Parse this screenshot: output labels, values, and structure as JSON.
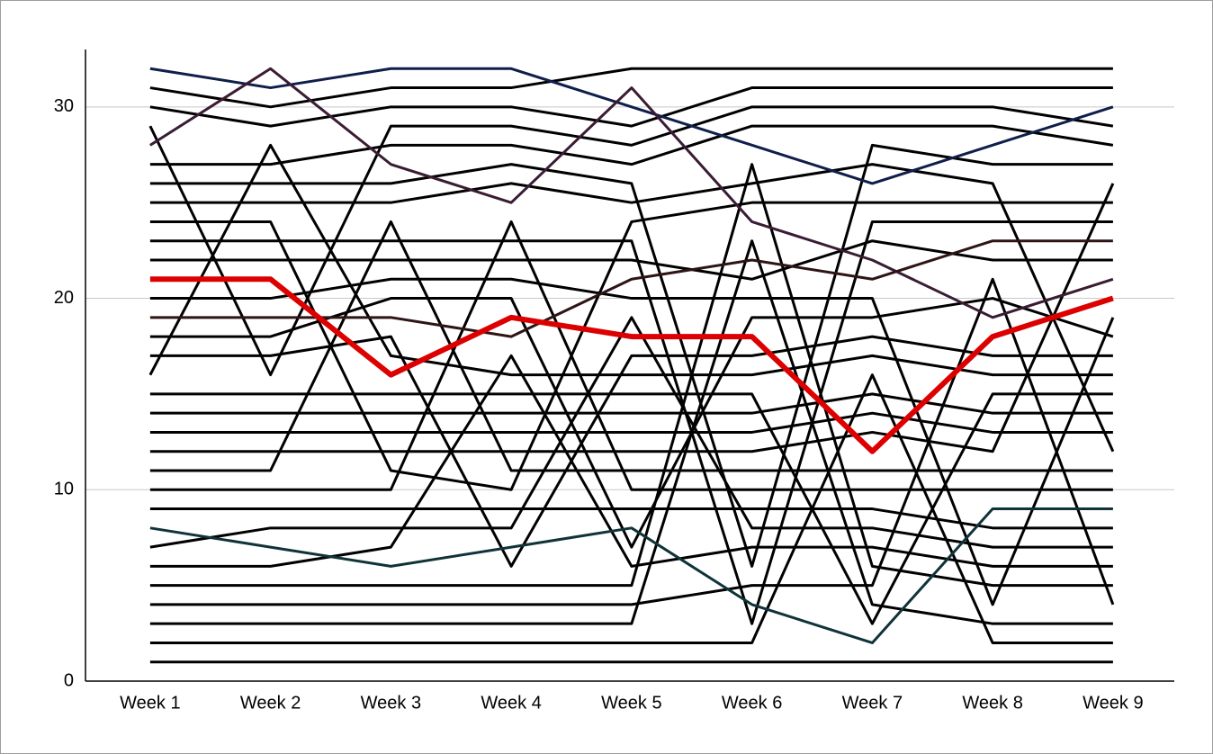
{
  "chart_data": {
    "type": "line",
    "categories": [
      "Week 1",
      "Week 2",
      "Week 3",
      "Week 4",
      "Week 5",
      "Week 6",
      "Week 7",
      "Week 8",
      "Week 9"
    ],
    "ylim": [
      0,
      33
    ],
    "yticks": [
      0,
      10,
      20,
      30
    ],
    "grid": true,
    "series": [
      {
        "color": "#000000",
        "values": [
          1,
          1,
          1,
          1,
          1,
          1,
          1,
          1,
          1
        ]
      },
      {
        "color": "#000000",
        "values": [
          2,
          2,
          2,
          2,
          2,
          2,
          16,
          2,
          2
        ]
      },
      {
        "color": "#000000",
        "values": [
          3,
          3,
          3,
          3,
          3,
          23,
          4,
          3,
          3
        ]
      },
      {
        "color": "#000000",
        "values": [
          4,
          4,
          4,
          4,
          4,
          5,
          5,
          21,
          4
        ]
      },
      {
        "color": "#000000",
        "values": [
          5,
          5,
          5,
          5,
          5,
          27,
          6,
          5,
          5
        ]
      },
      {
        "color": "#000000",
        "values": [
          6,
          6,
          7,
          17,
          6,
          7,
          7,
          6,
          6
        ]
      },
      {
        "color": "#000000",
        "values": [
          7,
          8,
          8,
          8,
          19,
          8,
          8,
          7,
          7
        ]
      },
      {
        "color": "#000000",
        "values": [
          9,
          9,
          9,
          9,
          9,
          9,
          9,
          8,
          8
        ]
      },
      {
        "color": "#000000",
        "values": [
          10,
          10,
          10,
          24,
          10,
          10,
          10,
          10,
          10
        ]
      },
      {
        "color": "#000000",
        "values": [
          11,
          11,
          24,
          11,
          11,
          11,
          11,
          11,
          11
        ]
      },
      {
        "color": "#000000",
        "values": [
          12,
          12,
          12,
          12,
          12,
          12,
          13,
          12,
          26
        ]
      },
      {
        "color": "#000000",
        "values": [
          13,
          13,
          13,
          13,
          13,
          13,
          14,
          13,
          13
        ]
      },
      {
        "color": "#000000",
        "values": [
          14,
          14,
          14,
          14,
          14,
          14,
          15,
          14,
          14
        ]
      },
      {
        "color": "#000000",
        "values": [
          15,
          15,
          15,
          15,
          15,
          15,
          3,
          15,
          15
        ]
      },
      {
        "color": "#000000",
        "values": [
          16,
          28,
          17,
          16,
          16,
          16,
          17,
          16,
          16
        ]
      },
      {
        "color": "#000000",
        "values": [
          17,
          17,
          18,
          6,
          17,
          17,
          18,
          17,
          17
        ]
      },
      {
        "color": "#000000",
        "values": [
          18,
          18,
          20,
          20,
          7,
          19,
          19,
          20,
          18
        ]
      },
      {
        "color": "#000000",
        "values": [
          20,
          20,
          21,
          21,
          20,
          20,
          20,
          4,
          19
        ]
      },
      {
        "color": "#000000",
        "values": [
          22,
          22,
          22,
          22,
          22,
          21,
          23,
          22,
          22
        ]
      },
      {
        "color": "#000000",
        "values": [
          23,
          23,
          23,
          23,
          23,
          3,
          24,
          24,
          24
        ]
      },
      {
        "color": "#000000",
        "values": [
          24,
          24,
          11,
          10,
          24,
          25,
          25,
          25,
          25
        ]
      },
      {
        "color": "#000000",
        "values": [
          25,
          25,
          25,
          26,
          25,
          26,
          27,
          26,
          12
        ]
      },
      {
        "color": "#000000",
        "values": [
          26,
          26,
          26,
          27,
          26,
          6,
          28,
          27,
          27
        ]
      },
      {
        "color": "#000000",
        "values": [
          27,
          27,
          28,
          28,
          27,
          29,
          29,
          29,
          28
        ]
      },
      {
        "color": "#000000",
        "values": [
          29,
          16,
          29,
          29,
          28,
          30,
          30,
          30,
          29
        ]
      },
      {
        "color": "#000000",
        "values": [
          30,
          29,
          30,
          30,
          29,
          31,
          31,
          31,
          31
        ]
      },
      {
        "color": "#000000",
        "values": [
          31,
          30,
          31,
          31,
          32,
          32,
          32,
          32,
          32
        ]
      },
      {
        "color": "#0f1e4a",
        "values": [
          32,
          31,
          32,
          32,
          30,
          28,
          26,
          28,
          30
        ]
      },
      {
        "color": "#3a1c33",
        "values": [
          28,
          32,
          27,
          25,
          31,
          24,
          22,
          19,
          21
        ]
      },
      {
        "color": "#2e1515",
        "values": [
          19,
          19,
          19,
          18,
          21,
          22,
          21,
          23,
          23
        ]
      },
      {
        "color": "#10333a",
        "values": [
          8,
          7,
          6,
          7,
          8,
          4,
          2,
          9,
          9
        ]
      },
      {
        "color": "#dd0000",
        "line_width": 6,
        "values": [
          21,
          21,
          16,
          19,
          18,
          18,
          12,
          18,
          20
        ]
      }
    ]
  }
}
